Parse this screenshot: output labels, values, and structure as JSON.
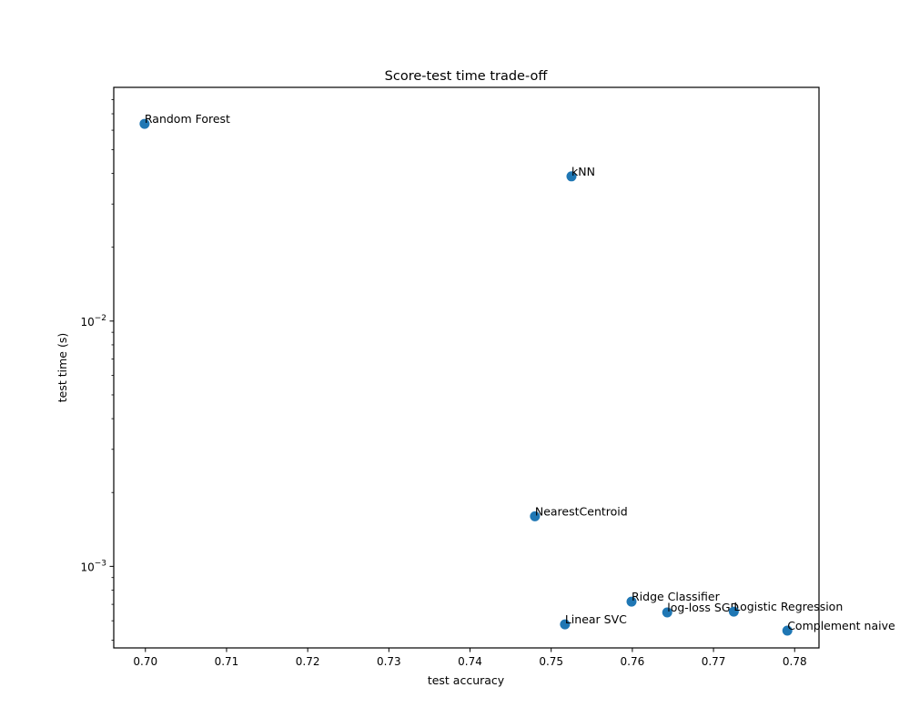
{
  "chart_data": {
    "type": "scatter",
    "title": "Score-test time trade-off",
    "xlabel": "test accuracy",
    "ylabel": "test time (s)",
    "xscale": "linear",
    "yscale": "log",
    "xlim": [
      0.6961,
      0.783
    ],
    "ylim": [
      0.000465,
      0.0897
    ],
    "grid": false,
    "legend": null,
    "marker_color": "#1f77b4",
    "x_ticks": [
      0.7,
      0.71,
      0.72,
      0.73,
      0.74,
      0.75,
      0.76,
      0.77,
      0.78
    ],
    "x_tick_labels": [
      "0.70",
      "0.71",
      "0.72",
      "0.73",
      "0.74",
      "0.75",
      "0.76",
      "0.77",
      "0.78"
    ],
    "y_major_ticks": [
      0.001,
      0.01
    ],
    "y_tick_labels": [
      {
        "base": "10",
        "exp": "−3",
        "value": 0.001
      },
      {
        "base": "10",
        "exp": "−2",
        "value": 0.01
      }
    ],
    "y_minor_ticks": [
      0.0005,
      0.0006,
      0.0007,
      0.0008,
      0.0009,
      0.002,
      0.003,
      0.004,
      0.005,
      0.006,
      0.007,
      0.008,
      0.009,
      0.02,
      0.03,
      0.04,
      0.05,
      0.06,
      0.07,
      0.08
    ],
    "points": [
      {
        "label": "Random Forest",
        "x": 0.6999,
        "y": 0.0637
      },
      {
        "label": "kNN",
        "x": 0.7525,
        "y": 0.0389
      },
      {
        "label": "NearestCentroid",
        "x": 0.748,
        "y": 0.0016
      },
      {
        "label": "Ridge Classifier",
        "x": 0.7599,
        "y": 0.000718
      },
      {
        "label": "log-loss SGD",
        "x": 0.7643,
        "y": 0.000649
      },
      {
        "label": "Logistic Regression",
        "x": 0.7725,
        "y": 0.000654
      },
      {
        "label": "Linear SVC",
        "x": 0.7517,
        "y": 0.00058
      },
      {
        "label": "Complement naive",
        "x": 0.7791,
        "y": 0.000547
      }
    ]
  }
}
